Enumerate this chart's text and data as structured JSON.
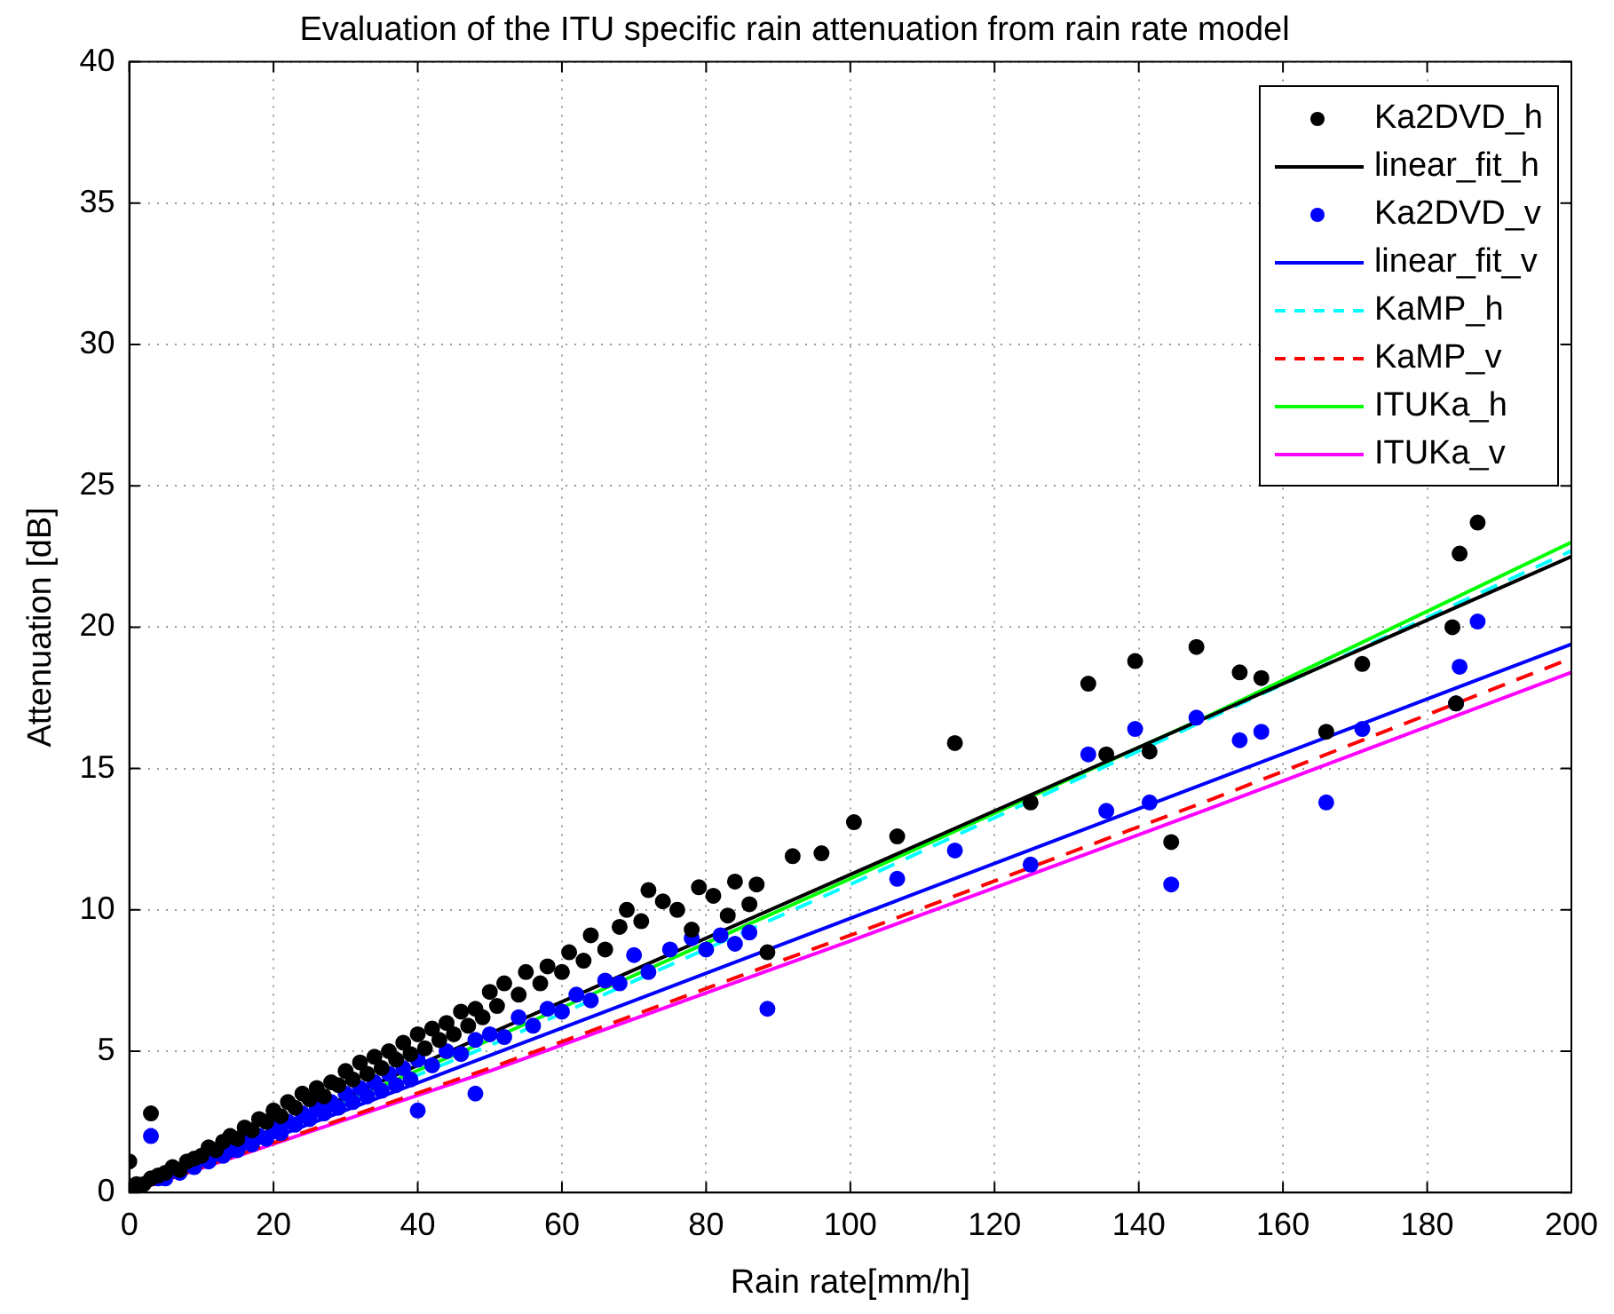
{
  "chart_data": {
    "type": "scatter",
    "title": "Evaluation of the ITU specific rain attenuation from rain rate model",
    "xlabel": "Rain rate[mm/h]",
    "ylabel": "Attenuation [dB]",
    "xlim": [
      0,
      200
    ],
    "xticks": [
      0,
      20,
      40,
      60,
      80,
      100,
      120,
      140,
      160,
      180,
      200
    ],
    "ylim": [
      0,
      40
    ],
    "yticks": [
      0,
      5,
      10,
      15,
      20,
      25,
      30,
      35,
      40
    ],
    "grid": true,
    "legend": "top right",
    "series": [
      {
        "name": "Ka2DVD_h",
        "marker": "circle",
        "color": "#000000",
        "x": [
          1,
          2,
          3,
          4,
          5,
          6,
          7,
          8,
          9,
          10,
          11,
          12,
          13,
          14,
          15,
          16,
          17,
          18,
          19,
          20,
          21,
          22,
          23,
          24,
          25,
          26,
          27,
          28,
          29,
          30,
          31,
          32,
          33,
          34,
          35,
          36,
          37,
          38,
          39,
          40,
          41,
          42,
          43,
          44,
          45,
          46,
          47,
          48,
          49,
          50,
          51,
          52,
          54,
          55,
          57,
          58,
          60,
          61,
          63,
          64,
          66,
          68,
          69,
          71,
          72,
          74,
          76,
          78,
          79,
          81,
          83,
          84,
          86,
          87,
          3,
          0,
          88.5,
          92,
          96,
          100.5,
          106.5,
          114.5,
          125,
          133,
          135.5,
          139.5,
          141.5,
          144.5,
          148,
          154,
          157,
          166,
          171,
          183.5,
          184.5,
          187,
          184
        ],
        "values": [
          0.3,
          0.3,
          0.5,
          0.6,
          0.7,
          0.9,
          0.8,
          1.1,
          1.2,
          1.3,
          1.6,
          1.5,
          1.8,
          2.0,
          1.9,
          2.3,
          2.2,
          2.6,
          2.5,
          2.9,
          2.7,
          3.2,
          3.0,
          3.5,
          3.3,
          3.7,
          3.4,
          3.9,
          3.8,
          4.3,
          4.0,
          4.6,
          4.2,
          4.8,
          4.4,
          5.0,
          4.7,
          5.3,
          4.9,
          5.6,
          5.1,
          5.8,
          5.4,
          6.0,
          5.6,
          6.4,
          5.9,
          6.5,
          6.2,
          7.1,
          6.6,
          7.4,
          7.0,
          7.8,
          7.4,
          8.0,
          7.8,
          8.5,
          8.2,
          9.1,
          8.6,
          9.4,
          10.0,
          9.6,
          10.7,
          10.3,
          10.0,
          9.3,
          10.8,
          10.5,
          9.8,
          11.0,
          10.2,
          10.9,
          2.8,
          1.1,
          8.5,
          11.9,
          12.0,
          13.1,
          12.6,
          15.9,
          13.8,
          18.0,
          15.5,
          18.8,
          15.6,
          12.4,
          19.3,
          18.4,
          18.2,
          16.3,
          18.7,
          20.0,
          22.6,
          23.7,
          17.3
        ]
      },
      {
        "name": "linear_fit_h",
        "type": "line",
        "marker": "none",
        "color": "#000000",
        "line_style": "solid",
        "x": [
          0,
          200
        ],
        "values": [
          0,
          22.5
        ]
      },
      {
        "name": "Ka2DVD_v",
        "marker": "circle",
        "color": "#0000ff",
        "x": [
          4,
          5,
          7,
          9,
          11,
          13,
          14,
          15,
          16,
          17,
          18,
          19,
          20,
          21,
          22,
          23,
          24,
          25,
          26,
          27,
          28,
          29,
          30,
          31,
          32,
          33,
          34,
          35,
          36,
          37,
          38,
          39,
          40,
          40,
          42,
          44,
          46,
          48,
          48,
          50,
          52,
          54,
          56,
          58,
          60,
          62,
          64,
          66,
          68,
          70,
          72,
          75,
          78,
          80,
          82,
          84,
          86,
          3,
          88.5,
          106.5,
          114.5,
          125,
          133,
          135.5,
          139.5,
          141.5,
          144.5,
          148,
          154,
          157,
          166,
          171,
          184,
          184.5,
          187
        ],
        "values": [
          0.5,
          0.5,
          0.7,
          0.9,
          1.1,
          1.3,
          1.5,
          1.5,
          1.8,
          1.7,
          2.0,
          1.9,
          2.3,
          2.1,
          2.5,
          2.4,
          2.8,
          2.6,
          3.0,
          2.8,
          3.2,
          3.0,
          3.5,
          3.2,
          3.7,
          3.4,
          3.9,
          3.6,
          4.2,
          3.8,
          4.4,
          4.0,
          4.7,
          2.9,
          4.5,
          5.0,
          4.9,
          5.4,
          3.5,
          5.6,
          5.5,
          6.2,
          5.9,
          6.5,
          6.4,
          7.0,
          6.8,
          7.5,
          7.4,
          8.4,
          7.8,
          8.6,
          9.0,
          8.6,
          9.1,
          8.8,
          9.2,
          2.0,
          6.5,
          11.1,
          12.1,
          11.6,
          15.5,
          13.5,
          16.4,
          13.8,
          10.9,
          16.8,
          16.0,
          16.3,
          13.8,
          16.4,
          17.3,
          18.6,
          20.2
        ]
      },
      {
        "name": "linear_fit_v",
        "type": "line",
        "marker": "none",
        "color": "#0000ff",
        "line_style": "solid",
        "x": [
          0,
          200
        ],
        "values": [
          0,
          19.4
        ]
      },
      {
        "name": "KaMP_h",
        "type": "line",
        "marker": "none",
        "color": "#00ffff",
        "line_style": "dashed",
        "x": [
          0,
          50,
          100,
          150,
          200
        ],
        "values": [
          0,
          5.2,
          10.9,
          16.8,
          22.7
        ]
      },
      {
        "name": "KaMP_v",
        "type": "line",
        "marker": "none",
        "color": "#ff0000",
        "line_style": "dashed",
        "x": [
          0,
          50,
          100,
          150,
          200
        ],
        "values": [
          0,
          4.4,
          9.1,
          13.9,
          18.9
        ]
      },
      {
        "name": "ITUKa_h",
        "type": "line",
        "marker": "none",
        "color": "#00ff00",
        "line_style": "solid",
        "x": [
          0,
          50,
          100,
          150,
          200
        ],
        "values": [
          0,
          5.4,
          11.1,
          16.9,
          23.0
        ]
      },
      {
        "name": "ITUKa_v",
        "type": "line",
        "marker": "none",
        "color": "#ff00ff",
        "line_style": "solid",
        "x": [
          0,
          50,
          100,
          150,
          200
        ],
        "values": [
          0,
          4.3,
          8.9,
          13.6,
          18.4
        ]
      }
    ]
  }
}
